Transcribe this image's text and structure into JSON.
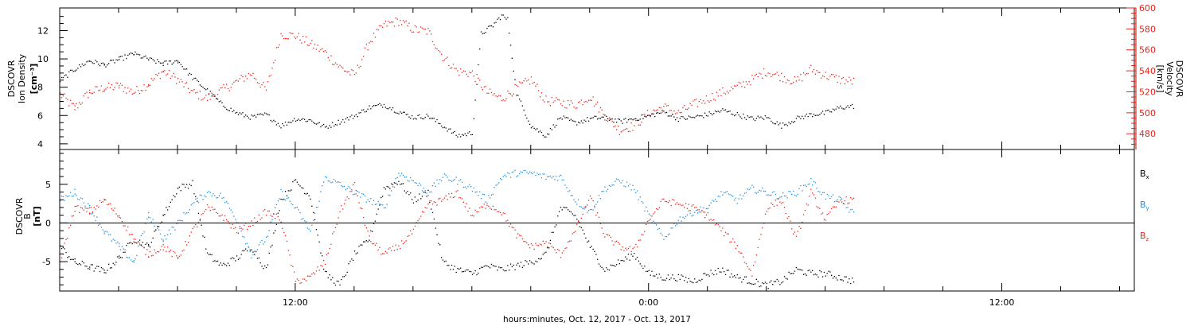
{
  "figure": {
    "xlabel": "hours:minutes, Oct. 12, 2017 - Oct. 13, 2017",
    "x_ticklabels": [
      "12:00",
      "0:00",
      "12:00"
    ]
  },
  "panels": {
    "density": {
      "ylabel_left": [
        "DSCOVR",
        "Ion  Density",
        "[cm⁻³]"
      ],
      "ylabel_right": [
        "DSCOVR",
        "Velocity",
        "[km/s]"
      ]
    },
    "bfield": {
      "ylabel_left": [
        "DSCOVR",
        "B",
        "[nT]"
      ],
      "legend": [
        "Bx",
        "By",
        "Bz"
      ]
    }
  },
  "colors": {
    "black": "#000000",
    "red": "#e8231b",
    "blue": "#1f8ee0"
  },
  "chart_data": [
    {
      "type": "scatter",
      "title": "",
      "x_unit": "hours since 2017-10-12 00:00",
      "xlim": [
        4.0,
        40.5
      ],
      "xticks": [
        12,
        24,
        36
      ],
      "y_left": {
        "label": "DSCOVR Ion Density [cm^-3]",
        "lim": [
          3.6,
          13.6
        ],
        "ticks": [
          4,
          6,
          8,
          10,
          12
        ]
      },
      "y_right": {
        "label": "DSCOVR Velocity [km/s]",
        "lim": [
          465,
          600
        ],
        "ticks": [
          480,
          500,
          520,
          540,
          560,
          580,
          600
        ]
      },
      "series": [
        {
          "color": "black",
          "axis": "left",
          "x": [
            4.0,
            4.5,
            5.0,
            5.5,
            6.0,
            6.5,
            7.0,
            7.5,
            8.0,
            8.5,
            9.0,
            9.5,
            10.0,
            10.5,
            11.0,
            11.5,
            12.0,
            12.5,
            13.0,
            13.5,
            14.0,
            14.5,
            15.0,
            15.5,
            16.0,
            16.5,
            17.0,
            17.5,
            18.0,
            18.3,
            18.7,
            19.0,
            19.2,
            19.5,
            20.0,
            20.5,
            21.0,
            21.5,
            22.0,
            22.5,
            23.0,
            23.5,
            24.0,
            24.5,
            25.0,
            25.5,
            26.0,
            26.5,
            27.0,
            27.5,
            28.0,
            28.5,
            29.0,
            29.5,
            30.0,
            30.5,
            31.0
          ],
          "y": [
            8.5,
            9.3,
            9.9,
            9.6,
            10.0,
            10.4,
            10.0,
            9.7,
            9.9,
            8.7,
            7.8,
            6.8,
            6.2,
            5.9,
            6.1,
            5.3,
            5.8,
            5.7,
            5.2,
            5.6,
            6.0,
            6.6,
            6.8,
            6.3,
            5.9,
            6.0,
            5.3,
            4.6,
            4.8,
            11.8,
            12.4,
            13.1,
            12.8,
            7.6,
            5.3,
            4.6,
            5.9,
            5.5,
            5.8,
            5.9,
            5.6,
            5.8,
            6.0,
            6.3,
            5.8,
            5.9,
            6.1,
            6.4,
            6.1,
            5.8,
            5.9,
            5.3,
            5.8,
            6.1,
            6.2,
            6.6,
            6.7
          ]
        },
        {
          "color": "red",
          "axis": "right",
          "x": [
            4.0,
            4.5,
            5.0,
            5.5,
            6.0,
            6.5,
            7.0,
            7.5,
            8.0,
            8.5,
            9.0,
            9.5,
            10.0,
            10.5,
            11.0,
            11.5,
            12.0,
            12.5,
            13.0,
            13.5,
            14.0,
            14.5,
            15.0,
            15.5,
            16.0,
            16.5,
            17.0,
            17.5,
            18.0,
            18.5,
            19.0,
            19.5,
            20.0,
            20.5,
            21.0,
            21.5,
            22.0,
            22.5,
            23.0,
            23.5,
            24.0,
            24.5,
            25.0,
            25.5,
            26.0,
            26.5,
            27.0,
            27.5,
            28.0,
            28.5,
            29.0,
            29.5,
            30.0,
            30.5,
            31.0
          ],
          "y": [
            518,
            505,
            520,
            524,
            526,
            520,
            528,
            540,
            532,
            520,
            514,
            522,
            530,
            538,
            522,
            575,
            574,
            566,
            558,
            544,
            536,
            568,
            584,
            588,
            580,
            578,
            554,
            540,
            538,
            520,
            514,
            524,
            532,
            512,
            510,
            508,
            516,
            498,
            484,
            488,
            500,
            506,
            500,
            508,
            514,
            520,
            525,
            532,
            540,
            535,
            530,
            542,
            536,
            532,
            530
          ]
        }
      ]
    },
    {
      "type": "scatter",
      "title": "",
      "x_unit": "hours since 2017-10-12 00:00",
      "xlim": [
        4.0,
        40.5
      ],
      "xticks": [
        12,
        24,
        36
      ],
      "ylim": [
        -8.8,
        9.5
      ],
      "yticks": [
        -5,
        0,
        5
      ],
      "zero_line": true,
      "series": [
        {
          "name": "Bx",
          "color": "black",
          "x": [
            4.0,
            4.5,
            5.0,
            5.5,
            6.0,
            6.5,
            7.0,
            7.5,
            8.0,
            8.5,
            9.0,
            9.5,
            10.0,
            10.5,
            11.0,
            11.5,
            12.0,
            12.5,
            13.0,
            13.5,
            14.0,
            14.5,
            15.0,
            15.5,
            16.0,
            16.5,
            17.0,
            17.5,
            18.0,
            18.5,
            19.0,
            19.5,
            20.0,
            20.5,
            21.0,
            21.5,
            22.0,
            22.5,
            23.0,
            23.5,
            24.0,
            24.5,
            25.0,
            25.5,
            26.0,
            26.5,
            27.0,
            27.5,
            28.0,
            28.5,
            29.0,
            29.5,
            30.0,
            30.5,
            31.0
          ],
          "y": [
            -3.0,
            -5.0,
            -5.6,
            -6.2,
            -4.5,
            -2.0,
            -3.0,
            1.0,
            4.5,
            5.2,
            -4.0,
            -5.5,
            -4.5,
            -3.0,
            -6.0,
            3.0,
            5.5,
            3.5,
            -6.5,
            -8.0,
            -4.0,
            -2.0,
            4.5,
            5.5,
            3.0,
            4.0,
            -5.0,
            -6.0,
            -6.5,
            -5.5,
            -6.0,
            -5.5,
            -5.0,
            -4.0,
            2.0,
            1.0,
            -3.0,
            -6.0,
            -5.0,
            -4.0,
            -6.5,
            -7.0,
            -7.0,
            -7.5,
            -6.5,
            -6.0,
            -7.0,
            -7.5,
            -8.0,
            -7.5,
            -6.0,
            -6.5,
            -6.5,
            -7.0,
            -7.5
          ]
        },
        {
          "name": "By",
          "color": "blue",
          "x": [
            4.0,
            4.5,
            5.0,
            5.5,
            6.0,
            6.5,
            7.0,
            7.5,
            8.0,
            8.5,
            9.0,
            9.5,
            10.0,
            10.5,
            11.0,
            11.5,
            12.0,
            12.5,
            13.0,
            13.5,
            14.0,
            14.5,
            15.0,
            15.5,
            16.0,
            16.5,
            17.0,
            17.5,
            18.0,
            18.5,
            19.0,
            19.5,
            20.0,
            20.5,
            21.0,
            21.5,
            22.0,
            22.5,
            23.0,
            23.5,
            24.0,
            24.5,
            25.0,
            25.5,
            26.0,
            26.5,
            27.0,
            27.5,
            28.0,
            28.5,
            29.0,
            29.5,
            30.0,
            30.5,
            31.0
          ],
          "y": [
            3.0,
            4.0,
            2.0,
            -1.0,
            -3.0,
            -5.0,
            1.0,
            -2.0,
            0.0,
            2.5,
            4.0,
            3.5,
            0.5,
            -4.0,
            -2.0,
            4.0,
            2.0,
            -1.0,
            6.0,
            5.0,
            4.0,
            3.0,
            2.0,
            6.5,
            5.5,
            4.0,
            6.0,
            5.5,
            4.5,
            3.0,
            6.0,
            6.5,
            6.5,
            6.0,
            6.0,
            3.0,
            1.5,
            4.5,
            5.5,
            4.5,
            1.0,
            -2.0,
            0.5,
            1.5,
            2.0,
            4.0,
            3.0,
            4.5,
            4.0,
            3.5,
            4.0,
            5.5,
            3.5,
            3.0,
            1.0
          ]
        },
        {
          "name": "Bz",
          "color": "red",
          "x": [
            4.0,
            4.5,
            5.0,
            5.5,
            6.0,
            6.5,
            7.0,
            7.5,
            8.0,
            8.5,
            9.0,
            9.5,
            10.0,
            10.5,
            11.0,
            11.5,
            12.0,
            12.5,
            13.0,
            13.5,
            14.0,
            14.5,
            15.0,
            15.5,
            16.0,
            16.5,
            17.0,
            17.5,
            18.0,
            18.5,
            19.0,
            19.5,
            20.0,
            20.5,
            21.0,
            21.5,
            22.0,
            22.5,
            23.0,
            23.5,
            24.0,
            24.5,
            25.0,
            25.5,
            26.0,
            26.5,
            27.0,
            27.5,
            28.0,
            28.5,
            29.0,
            29.5,
            30.0,
            30.5,
            31.0
          ],
          "y": [
            -5.0,
            2.0,
            1.5,
            3.0,
            1.0,
            -2.0,
            -4.0,
            -3.0,
            -4.5,
            -1.0,
            2.0,
            1.0,
            -1.0,
            0.0,
            1.5,
            0.5,
            -7.5,
            -7.0,
            -5.0,
            1.5,
            5.0,
            -2.0,
            -4.0,
            -3.0,
            -1.0,
            2.5,
            3.0,
            4.0,
            1.0,
            2.5,
            1.5,
            -1.5,
            -3.0,
            -2.5,
            -4.0,
            -1.0,
            3.5,
            -1.5,
            -3.0,
            -3.5,
            0.5,
            3.0,
            2.5,
            2.0,
            1.0,
            -1.0,
            -3.0,
            -6.5,
            2.0,
            3.0,
            -2.0,
            4.0,
            0.5,
            3.0,
            3.0
          ]
        }
      ]
    }
  ]
}
